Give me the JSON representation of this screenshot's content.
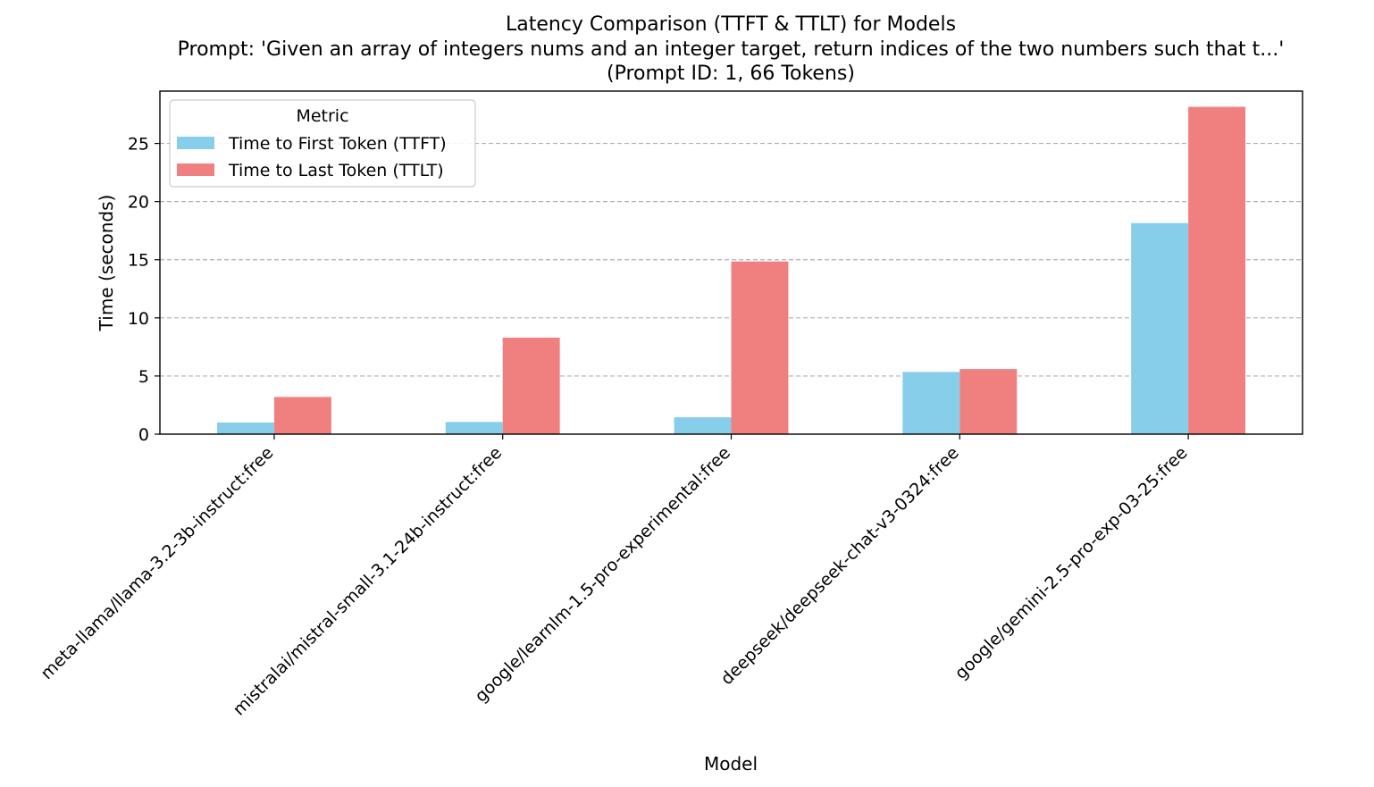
{
  "chart_data": {
    "type": "bar",
    "title_lines": [
      "Latency Comparison (TTFT & TTLT) for Models",
      "Prompt: 'Given an array of integers nums and an integer target, return indices of the two numbers such that t...'",
      "(Prompt ID: 1, 66 Tokens)"
    ],
    "xlabel": "Model",
    "ylabel": "Time (seconds)",
    "ylim": [
      0,
      29.5
    ],
    "yticks": [
      0,
      5,
      10,
      15,
      20,
      25
    ],
    "grid": "y-dashed",
    "legend_title": "Metric",
    "legend_position": "top-left",
    "categories": [
      "meta-llama/llama-3.2-3b-instruct:free",
      "mistralai/mistral-small-3.1-24b-instruct:free",
      "google/learnlm-1.5-pro-experimental:free",
      "deepseek/deepseek-chat-v3-0324:free",
      "google/gemini-2.5-pro-exp-03-25:free"
    ],
    "series": [
      {
        "name": "Time to First Token (TTFT)",
        "color": "#87ceeb",
        "values": [
          1.0,
          1.05,
          1.45,
          5.35,
          18.15
        ]
      },
      {
        "name": "Time to Last Token (TTLT)",
        "color": "#f08080",
        "values": [
          3.2,
          8.3,
          14.85,
          5.6,
          28.15
        ]
      }
    ]
  }
}
